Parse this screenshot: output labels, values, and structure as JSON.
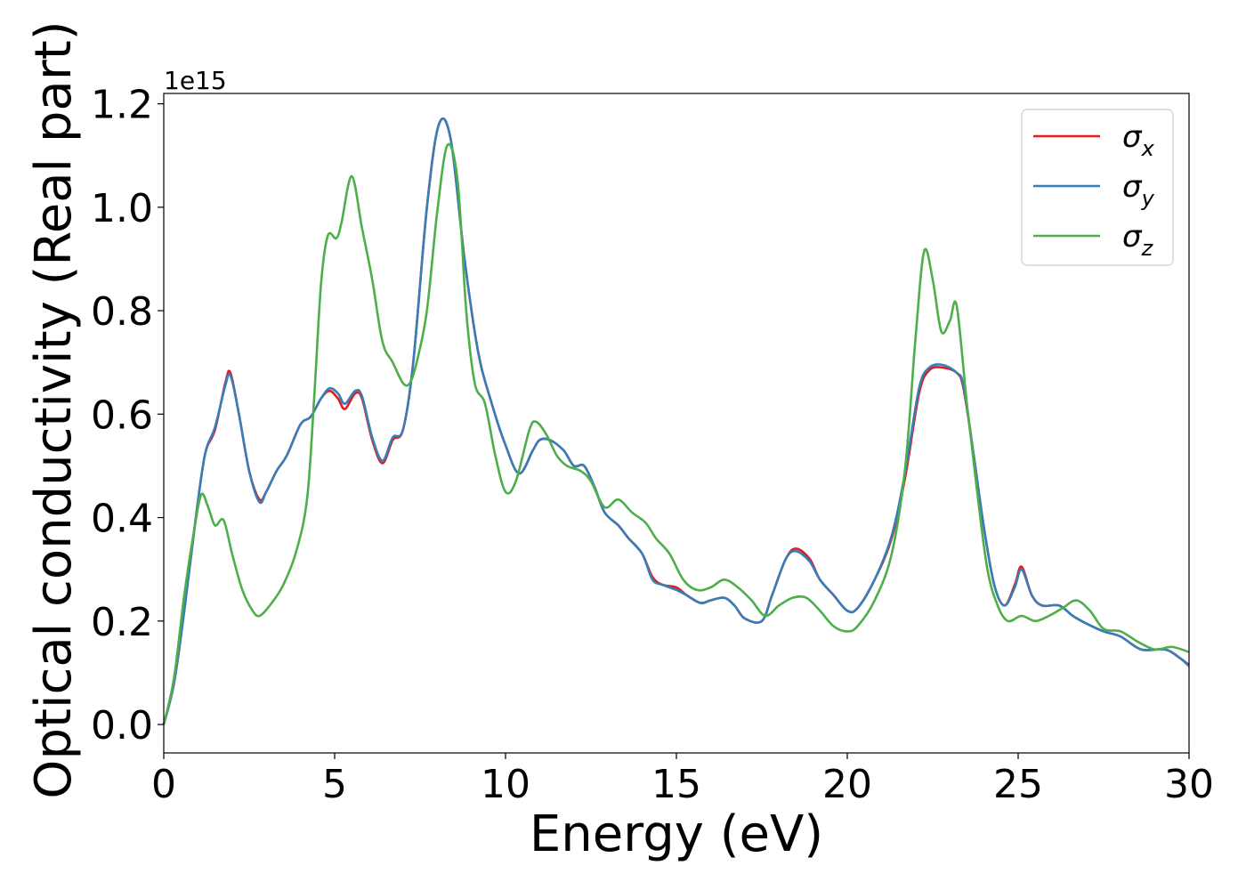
{
  "chart_data": {
    "type": "line",
    "xlabel": "Energy (eV)",
    "ylabel": "Optical conductivity (Real part)",
    "y_offset_label": "1e15",
    "xlim": [
      0,
      30
    ],
    "ylim": [
      -0.055,
      1.22
    ],
    "xticks": [
      0,
      5,
      10,
      15,
      20,
      25,
      30
    ],
    "yticks": [
      0.0,
      0.2,
      0.4,
      0.6,
      0.8,
      1.0,
      1.2
    ],
    "grid": false,
    "legend_position": "top-right",
    "series": [
      {
        "name": "σx",
        "label_base": "σ",
        "label_sub": "x",
        "color": "#e41a1c",
        "points": [
          [
            0,
            0
          ],
          [
            0.3,
            0.08
          ],
          [
            0.6,
            0.22
          ],
          [
            0.9,
            0.38
          ],
          [
            1.2,
            0.52
          ],
          [
            1.5,
            0.57
          ],
          [
            1.8,
            0.66
          ],
          [
            1.95,
            0.68
          ],
          [
            2.2,
            0.6
          ],
          [
            2.5,
            0.49
          ],
          [
            2.8,
            0.435
          ],
          [
            3.0,
            0.45
          ],
          [
            3.3,
            0.49
          ],
          [
            3.6,
            0.52
          ],
          [
            4.0,
            0.58
          ],
          [
            4.3,
            0.595
          ],
          [
            4.6,
            0.63
          ],
          [
            4.85,
            0.645
          ],
          [
            5.1,
            0.63
          ],
          [
            5.3,
            0.61
          ],
          [
            5.6,
            0.64
          ],
          [
            5.8,
            0.63
          ],
          [
            6.1,
            0.55
          ],
          [
            6.4,
            0.505
          ],
          [
            6.7,
            0.55
          ],
          [
            7.0,
            0.57
          ],
          [
            7.3,
            0.7
          ],
          [
            7.7,
            1.0
          ],
          [
            8.05,
            1.16
          ],
          [
            8.4,
            1.13
          ],
          [
            8.8,
            0.9
          ],
          [
            9.2,
            0.72
          ],
          [
            9.6,
            0.62
          ],
          [
            10.0,
            0.54
          ],
          [
            10.4,
            0.485
          ],
          [
            10.8,
            0.53
          ],
          [
            11.0,
            0.55
          ],
          [
            11.3,
            0.55
          ],
          [
            11.7,
            0.53
          ],
          [
            12.0,
            0.5
          ],
          [
            12.3,
            0.5
          ],
          [
            12.6,
            0.46
          ],
          [
            12.9,
            0.41
          ],
          [
            13.3,
            0.385
          ],
          [
            13.6,
            0.36
          ],
          [
            14.0,
            0.33
          ],
          [
            14.3,
            0.285
          ],
          [
            14.6,
            0.27
          ],
          [
            15.0,
            0.265
          ],
          [
            15.3,
            0.25
          ],
          [
            15.7,
            0.235
          ],
          [
            16.0,
            0.24
          ],
          [
            16.4,
            0.245
          ],
          [
            16.7,
            0.23
          ],
          [
            17.0,
            0.205
          ],
          [
            17.5,
            0.2
          ],
          [
            17.8,
            0.25
          ],
          [
            18.2,
            0.32
          ],
          [
            18.5,
            0.34
          ],
          [
            18.9,
            0.32
          ],
          [
            19.2,
            0.28
          ],
          [
            19.6,
            0.25
          ],
          [
            20.0,
            0.22
          ],
          [
            20.3,
            0.225
          ],
          [
            20.8,
            0.28
          ],
          [
            21.3,
            0.36
          ],
          [
            21.7,
            0.48
          ],
          [
            22.1,
            0.64
          ],
          [
            22.4,
            0.685
          ],
          [
            22.8,
            0.69
          ],
          [
            23.2,
            0.68
          ],
          [
            23.4,
            0.65
          ],
          [
            23.7,
            0.52
          ],
          [
            24.0,
            0.38
          ],
          [
            24.3,
            0.27
          ],
          [
            24.6,
            0.23
          ],
          [
            24.9,
            0.27
          ],
          [
            25.1,
            0.305
          ],
          [
            25.4,
            0.25
          ],
          [
            25.7,
            0.23
          ],
          [
            26.2,
            0.23
          ],
          [
            26.6,
            0.21
          ],
          [
            27.0,
            0.195
          ],
          [
            27.5,
            0.18
          ],
          [
            28.0,
            0.17
          ],
          [
            28.6,
            0.145
          ],
          [
            29.3,
            0.145
          ],
          [
            29.7,
            0.13
          ],
          [
            30.0,
            0.115
          ]
        ]
      },
      {
        "name": "σy",
        "label_base": "σ",
        "label_sub": "y",
        "color": "#377eb8",
        "points": [
          [
            0,
            0
          ],
          [
            0.3,
            0.08
          ],
          [
            0.6,
            0.22
          ],
          [
            0.9,
            0.38
          ],
          [
            1.2,
            0.52
          ],
          [
            1.5,
            0.575
          ],
          [
            1.8,
            0.655
          ],
          [
            1.95,
            0.675
          ],
          [
            2.2,
            0.6
          ],
          [
            2.5,
            0.49
          ],
          [
            2.8,
            0.43
          ],
          [
            3.0,
            0.45
          ],
          [
            3.3,
            0.49
          ],
          [
            3.6,
            0.52
          ],
          [
            4.0,
            0.58
          ],
          [
            4.3,
            0.595
          ],
          [
            4.6,
            0.63
          ],
          [
            4.85,
            0.65
          ],
          [
            5.1,
            0.64
          ],
          [
            5.3,
            0.62
          ],
          [
            5.6,
            0.645
          ],
          [
            5.8,
            0.635
          ],
          [
            6.1,
            0.555
          ],
          [
            6.4,
            0.51
          ],
          [
            6.7,
            0.555
          ],
          [
            7.0,
            0.57
          ],
          [
            7.3,
            0.7
          ],
          [
            7.7,
            1.0
          ],
          [
            8.05,
            1.16
          ],
          [
            8.4,
            1.13
          ],
          [
            8.8,
            0.9
          ],
          [
            9.2,
            0.72
          ],
          [
            9.6,
            0.62
          ],
          [
            10.0,
            0.54
          ],
          [
            10.4,
            0.485
          ],
          [
            10.8,
            0.53
          ],
          [
            11.0,
            0.55
          ],
          [
            11.3,
            0.55
          ],
          [
            11.7,
            0.53
          ],
          [
            12.0,
            0.5
          ],
          [
            12.3,
            0.5
          ],
          [
            12.6,
            0.46
          ],
          [
            12.9,
            0.41
          ],
          [
            13.3,
            0.385
          ],
          [
            13.6,
            0.36
          ],
          [
            14.0,
            0.33
          ],
          [
            14.3,
            0.28
          ],
          [
            14.6,
            0.27
          ],
          [
            15.0,
            0.26
          ],
          [
            15.3,
            0.25
          ],
          [
            15.7,
            0.235
          ],
          [
            16.0,
            0.24
          ],
          [
            16.4,
            0.245
          ],
          [
            16.7,
            0.23
          ],
          [
            17.0,
            0.205
          ],
          [
            17.5,
            0.2
          ],
          [
            17.8,
            0.25
          ],
          [
            18.2,
            0.32
          ],
          [
            18.5,
            0.335
          ],
          [
            18.9,
            0.315
          ],
          [
            19.2,
            0.28
          ],
          [
            19.6,
            0.25
          ],
          [
            20.0,
            0.22
          ],
          [
            20.3,
            0.225
          ],
          [
            20.8,
            0.28
          ],
          [
            21.3,
            0.365
          ],
          [
            21.7,
            0.49
          ],
          [
            22.1,
            0.65
          ],
          [
            22.4,
            0.69
          ],
          [
            22.8,
            0.695
          ],
          [
            23.2,
            0.68
          ],
          [
            23.4,
            0.655
          ],
          [
            23.7,
            0.52
          ],
          [
            24.0,
            0.38
          ],
          [
            24.3,
            0.27
          ],
          [
            24.6,
            0.23
          ],
          [
            24.9,
            0.265
          ],
          [
            25.1,
            0.3
          ],
          [
            25.4,
            0.25
          ],
          [
            25.7,
            0.23
          ],
          [
            26.2,
            0.23
          ],
          [
            26.6,
            0.21
          ],
          [
            27.0,
            0.195
          ],
          [
            27.5,
            0.18
          ],
          [
            28.0,
            0.17
          ],
          [
            28.6,
            0.145
          ],
          [
            29.3,
            0.145
          ],
          [
            29.7,
            0.13
          ],
          [
            30.0,
            0.113
          ]
        ]
      },
      {
        "name": "σz",
        "label_base": "σ",
        "label_sub": "z",
        "color": "#4daf4a",
        "points": [
          [
            0,
            0
          ],
          [
            0.3,
            0.09
          ],
          [
            0.6,
            0.25
          ],
          [
            0.9,
            0.38
          ],
          [
            1.1,
            0.445
          ],
          [
            1.3,
            0.42
          ],
          [
            1.5,
            0.385
          ],
          [
            1.75,
            0.395
          ],
          [
            2.0,
            0.33
          ],
          [
            2.3,
            0.26
          ],
          [
            2.6,
            0.22
          ],
          [
            2.8,
            0.21
          ],
          [
            3.1,
            0.23
          ],
          [
            3.5,
            0.27
          ],
          [
            3.9,
            0.34
          ],
          [
            4.2,
            0.44
          ],
          [
            4.4,
            0.63
          ],
          [
            4.6,
            0.85
          ],
          [
            4.8,
            0.945
          ],
          [
            5.05,
            0.94
          ],
          [
            5.2,
            0.97
          ],
          [
            5.5,
            1.06
          ],
          [
            5.8,
            0.96
          ],
          [
            6.1,
            0.86
          ],
          [
            6.4,
            0.74
          ],
          [
            6.7,
            0.7
          ],
          [
            7.0,
            0.66
          ],
          [
            7.2,
            0.66
          ],
          [
            7.4,
            0.7
          ],
          [
            7.7,
            0.8
          ],
          [
            8.0,
            0.99
          ],
          [
            8.3,
            1.12
          ],
          [
            8.6,
            1.05
          ],
          [
            8.85,
            0.8
          ],
          [
            9.1,
            0.66
          ],
          [
            9.4,
            0.62
          ],
          [
            9.7,
            0.52
          ],
          [
            10.0,
            0.45
          ],
          [
            10.3,
            0.47
          ],
          [
            10.7,
            0.57
          ],
          [
            10.9,
            0.585
          ],
          [
            11.2,
            0.56
          ],
          [
            11.5,
            0.52
          ],
          [
            11.8,
            0.5
          ],
          [
            12.2,
            0.49
          ],
          [
            12.5,
            0.47
          ],
          [
            12.9,
            0.42
          ],
          [
            13.3,
            0.435
          ],
          [
            13.7,
            0.41
          ],
          [
            14.1,
            0.39
          ],
          [
            14.4,
            0.36
          ],
          [
            14.8,
            0.33
          ],
          [
            15.2,
            0.28
          ],
          [
            15.6,
            0.26
          ],
          [
            16.0,
            0.265
          ],
          [
            16.4,
            0.28
          ],
          [
            16.8,
            0.265
          ],
          [
            17.2,
            0.24
          ],
          [
            17.6,
            0.21
          ],
          [
            18.0,
            0.23
          ],
          [
            18.4,
            0.245
          ],
          [
            18.8,
            0.245
          ],
          [
            19.2,
            0.22
          ],
          [
            19.6,
            0.19
          ],
          [
            20.0,
            0.18
          ],
          [
            20.3,
            0.19
          ],
          [
            20.8,
            0.24
          ],
          [
            21.3,
            0.33
          ],
          [
            21.7,
            0.5
          ],
          [
            22.0,
            0.75
          ],
          [
            22.25,
            0.915
          ],
          [
            22.5,
            0.86
          ],
          [
            22.75,
            0.76
          ],
          [
            23.0,
            0.78
          ],
          [
            23.2,
            0.81
          ],
          [
            23.5,
            0.62
          ],
          [
            23.8,
            0.45
          ],
          [
            24.1,
            0.3
          ],
          [
            24.4,
            0.23
          ],
          [
            24.7,
            0.2
          ],
          [
            25.1,
            0.21
          ],
          [
            25.5,
            0.2
          ],
          [
            25.9,
            0.21
          ],
          [
            26.3,
            0.225
          ],
          [
            26.7,
            0.24
          ],
          [
            27.1,
            0.22
          ],
          [
            27.5,
            0.185
          ],
          [
            28.0,
            0.18
          ],
          [
            28.5,
            0.16
          ],
          [
            29.0,
            0.145
          ],
          [
            29.5,
            0.15
          ],
          [
            30.0,
            0.14
          ]
        ]
      }
    ]
  }
}
